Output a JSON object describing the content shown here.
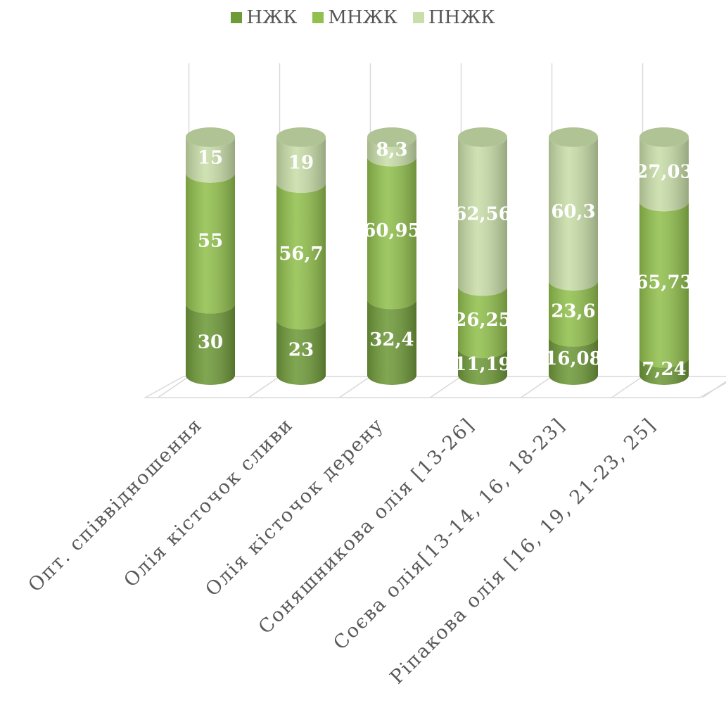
{
  "chart_data": {
    "type": "bar",
    "stacked": true,
    "percent": true,
    "categories": [
      "Опт. співвідношення",
      "Олія кісточок сливи",
      "Олія кісточок дерену",
      "Соняшникова олія [13-26]",
      "Соєва олія[13-14, 16, 18-23]",
      "Ріпакова олія [16, 19, 21-23, 25]"
    ],
    "series": [
      {
        "name": "НЖК",
        "values": [
          30,
          23,
          32.4,
          11.19,
          16.08,
          7.24
        ],
        "labels": [
          "30",
          "23",
          "32,4",
          "11,19",
          "16,08",
          "7,24"
        ]
      },
      {
        "name": "МНЖК",
        "values": [
          55,
          56.7,
          60.95,
          26.25,
          23.6,
          65.73
        ],
        "labels": [
          "55",
          "56,7",
          "60,95",
          "26,25",
          "23,6",
          "65,73"
        ]
      },
      {
        "name": "ПНЖК",
        "values": [
          15,
          19,
          8.3,
          62.56,
          60.3,
          27.03
        ],
        "labels": [
          "15",
          "19",
          "8,3",
          "62,56",
          "60,3",
          "27,03"
        ]
      }
    ],
    "colors": [
      "#6f9a3a",
      "#92c04e",
      "#c9dea9"
    ],
    "legend_position": "top",
    "grid": true
  }
}
